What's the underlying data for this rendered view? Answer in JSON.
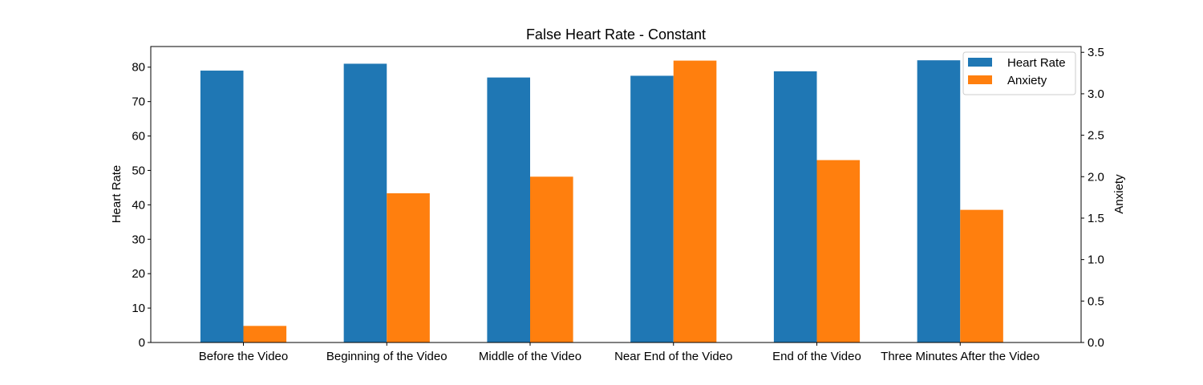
{
  "chart_data": {
    "type": "bar",
    "title": "False Heart Rate - Constant",
    "categories": [
      "Before the Video",
      "Beginning of the Video",
      "Middle of the Video",
      "Near End of the Video",
      "End of the Video",
      "Three Minutes After the Video"
    ],
    "series": [
      {
        "name": "Heart Rate",
        "axis": "left",
        "color": "#1f77b4",
        "values": [
          79,
          81,
          77,
          77.5,
          78.8,
          82
        ]
      },
      {
        "name": "Anxiety",
        "axis": "right",
        "color": "#ff7f0e",
        "values": [
          0.2,
          1.8,
          2.0,
          3.4,
          2.2,
          1.6
        ]
      }
    ],
    "ylabel": "Heart Rate",
    "y2label": "Anxiety",
    "ylim": [
      0,
      86
    ],
    "y2lim": [
      0,
      3.57
    ],
    "yticks": [
      "0",
      "10",
      "20",
      "30",
      "40",
      "50",
      "60",
      "70",
      "80"
    ],
    "y2ticks": [
      "0.0",
      "0.5",
      "1.0",
      "1.5",
      "2.0",
      "2.5",
      "3.0",
      "3.5"
    ],
    "legend_position": "top-right",
    "grid": false
  }
}
